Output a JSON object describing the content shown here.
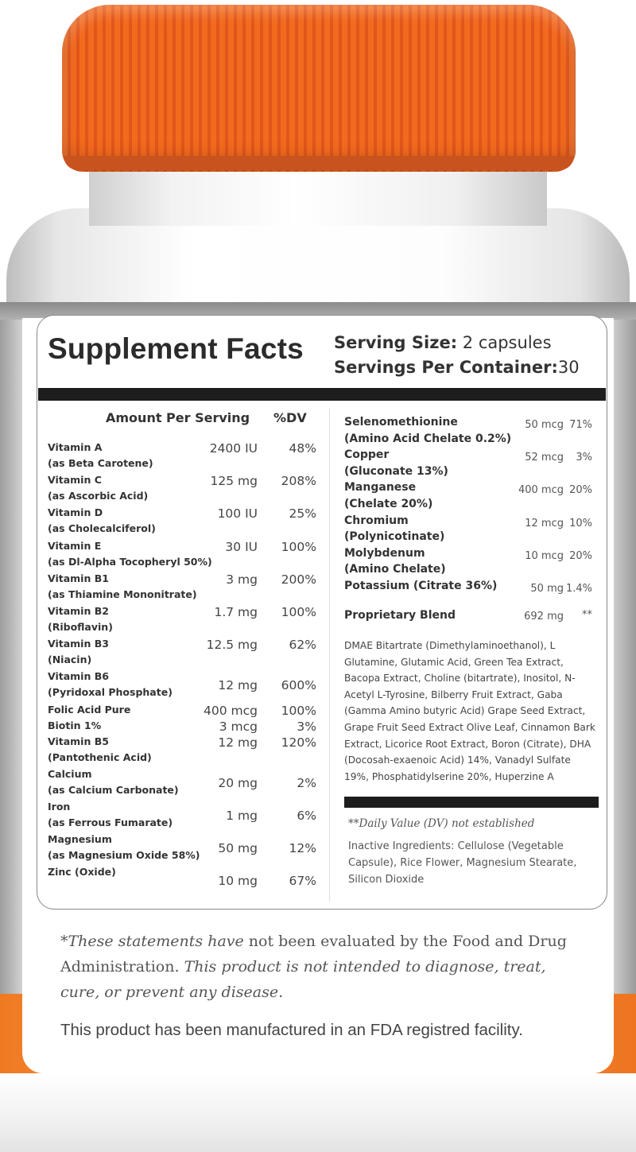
{
  "header": {
    "title": "Supplement Facts",
    "serving_size_label": "Serving Size:",
    "serving_size_value": "2 capsules",
    "servings_label": "Servings Per Container:",
    "servings_value": "30"
  },
  "columns": {
    "amount": "Amount Per Serving",
    "dv": "%DV"
  },
  "left_nutrients": [
    {
      "name": "Vitamin A",
      "sub": "(as Beta Carotene)",
      "amount": "2400 IU",
      "dv": "48%"
    },
    {
      "name": "Vitamin C",
      "sub": "(as Ascorbic Acid)",
      "amount": "125 mg",
      "dv": "208%"
    },
    {
      "name": "Vitamin D",
      "sub": "(as Cholecalciferol)",
      "amount": "100 IU",
      "dv": "25%"
    },
    {
      "name": "Vitamin E",
      "sub": "(as Dl-Alpha Tocopheryl 50%)",
      "amount": "30 IU",
      "dv": "100%"
    },
    {
      "name": "Vitamin B1",
      "sub": "(as Thiamine Mononitrate)",
      "amount": "3 mg",
      "dv": "200%"
    },
    {
      "name": "Vitamin B2",
      "sub": "(Riboflavin)",
      "amount": "1.7 mg",
      "dv": "100%"
    },
    {
      "name": "Vitamin B3",
      "sub": "(Niacin)",
      "amount": "12.5 mg",
      "dv": "62%"
    },
    {
      "name": "Vitamin B6",
      "sub": "(Pyridoxal Phosphate)",
      "amount": "12 mg",
      "dv": "600%"
    },
    {
      "name": "Folic Acid Pure",
      "sub": "",
      "amount": "400 mcg",
      "dv": "100%"
    },
    {
      "name": "Biotin 1%",
      "sub": "",
      "amount": "3 mcg",
      "dv": "3%"
    },
    {
      "name": "Vitamin B5",
      "sub": "(Pantothenic Acid)",
      "amount": "12 mg",
      "dv": "120%"
    },
    {
      "name": "Calcium",
      "sub": "(as Calcium Carbonate)",
      "amount": "20 mg",
      "dv": "2%"
    },
    {
      "name": "Iron",
      "sub": "(as Ferrous Fumarate)",
      "amount": "1 mg",
      "dv": "6%"
    },
    {
      "name": "Magnesium",
      "sub": "(as Magnesium Oxide 58%)",
      "amount": "50 mg",
      "dv": "12%"
    },
    {
      "name": "Zinc (Oxide)",
      "sub": "",
      "amount": "10 mg",
      "dv": "67%"
    }
  ],
  "right_nutrients": [
    {
      "name": "Selenomethionine",
      "sub": "(Amino Acid Chelate 0.2%)",
      "amount": "50 mcg",
      "dv": "71%"
    },
    {
      "name": "Copper",
      "sub": "(Gluconate 13%)",
      "amount": "52 mcg",
      "dv": "3%"
    },
    {
      "name": "Manganese",
      "sub": "(Chelate 20%)",
      "amount": "400 mcg",
      "dv": "20%"
    },
    {
      "name": "Chromium",
      "sub": "(Polynicotinate)",
      "amount": "12 mcg",
      "dv": "10%"
    },
    {
      "name": "Molybdenum",
      "sub": "(Amino Chelate)",
      "amount": "10 mcg",
      "dv": "20%"
    },
    {
      "name": "Potassium (Citrate 36%)",
      "sub": "",
      "amount": "50 mg",
      "dv": "1.4%"
    }
  ],
  "blend": {
    "name": "Proprietary Blend",
    "amount": "692 mg",
    "dv": "**",
    "ingredients": "DMAE Bitartrate (Dimethylaminoethanol), L Glutamine, Glutamic Acid, Green Tea Extract, Bacopa Extract, Choline (bitartrate), Inositol, N-Acetyl L-Tyrosine, Bilberry Fruit Extract, Gaba (Gamma Amino butyric Acid) Grape Seed Extract, Grape Fruit Seed Extract Olive Leaf, Cinnamon Bark Extract, Licorice Root Extract, Boron (Citrate), DHA (Docosah-exaenoic Acid) 14%, Vanadyl Sulfate 19%, Phosphatidylserine 20%, Huperzine A"
  },
  "dv_note": "**Daily Value (DV) not established",
  "inactive": "Inactive Ingredients: Cellulose (Vegetable Capsule), Rice Flower, Magnesium Stearate, Silicon Dioxide",
  "disclaimer": {
    "p1": "*These statements have",
    "p2": "not been evaluated by the Food and Drug",
    "p3": "Administration.",
    "p4": "This product is not intended to diagnose, treat, cure, or prevent any disease."
  },
  "facility": "This product has been manufactured in an FDA registred facility.",
  "colors": {
    "cap": "#f26a1e",
    "band": "#f07a22",
    "text": "#333333"
  }
}
